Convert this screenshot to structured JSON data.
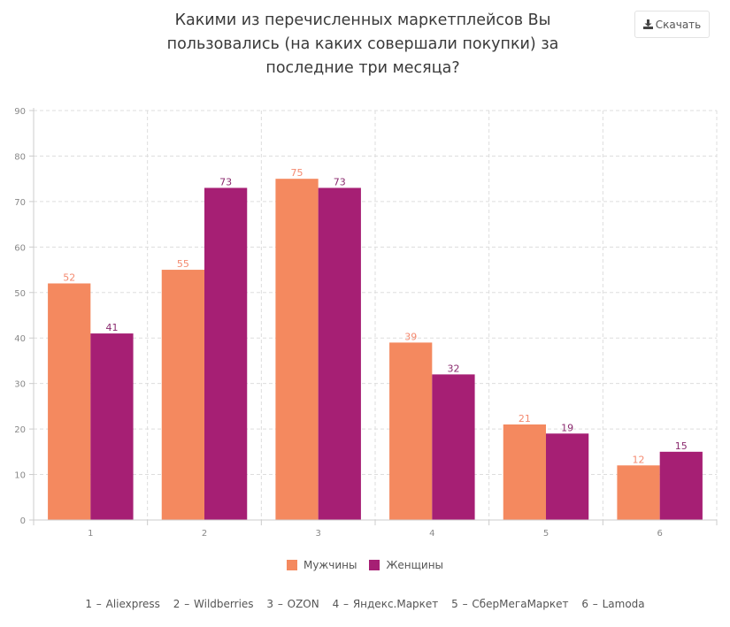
{
  "header": {
    "title": "Какими из перечисленных маркетплейсов Вы пользовались (на каких совершали покупки) за последние три месяца?",
    "title_lines": [
      "Какими из перечисленных маркетплейсов Вы",
      "пользовались (на каких совершали покупки) за",
      "последние три месяца?"
    ],
    "download_label": "Скачать",
    "download_icon": "download-icon"
  },
  "colors": {
    "men": "#f4895f",
    "women": "#a61f74",
    "grid": "#dddddd",
    "axis": "#cccccc"
  },
  "chart_data": {
    "type": "bar",
    "title": "Какими из перечисленных маркетплейсов Вы пользовались (на каких совершали покупки) за последние три месяца?",
    "categories": [
      "1",
      "2",
      "3",
      "4",
      "5",
      "6"
    ],
    "series": [
      {
        "name": "Мужчины",
        "values": [
          52,
          55,
          75,
          39,
          21,
          12
        ]
      },
      {
        "name": "Женщины",
        "values": [
          41,
          73,
          73,
          32,
          19,
          15
        ]
      }
    ],
    "ylim": [
      0,
      90
    ],
    "yticks": [
      "0",
      "10",
      "20",
      "30",
      "40",
      "50",
      "60",
      "70",
      "80",
      "90"
    ],
    "xlabel": "",
    "ylabel": "",
    "grid": true,
    "legend_position": "bottom"
  },
  "legend": [
    {
      "label": "Мужчины"
    },
    {
      "label": "Женщины"
    }
  ],
  "caption": [
    "1 – Aliexpress",
    "2 – Wildberries",
    "3 – OZON",
    "4 – Яндекс.Маркет",
    "5 – СберМегаМаркет",
    "6 – Lamoda"
  ]
}
